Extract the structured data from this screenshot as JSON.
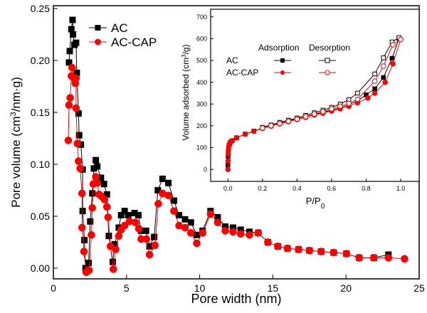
{
  "chart_data": [
    {
      "type": "line",
      "xlabel": "Pore width (nm)",
      "ylabel": "Pore volume (cm3/nm·g)",
      "ylabel_parts": [
        "Pore volume (cm",
        "3",
        "/nm·g)"
      ],
      "xlim": [
        0,
        25
      ],
      "ylim": [
        -0.0103,
        0.2527
      ],
      "xticks": [
        0,
        5,
        10,
        15,
        20,
        25
      ],
      "yticks": [
        "0.00",
        "0.05",
        "0.10",
        "0.15",
        "0.20",
        "0.25"
      ],
      "legend_position": "top-left",
      "series": [
        {
          "name": "AC",
          "color": "#000000",
          "marker": "square",
          "points": [
            [
              1.07,
              0.198
            ],
            [
              1.12,
              0.209
            ],
            [
              1.23,
              0.23
            ],
            [
              1.31,
              0.239
            ],
            [
              1.34,
              0.225
            ],
            [
              1.44,
              0.215
            ],
            [
              1.55,
              0.217
            ],
            [
              1.6,
              0.188
            ],
            [
              1.72,
              0.149
            ],
            [
              1.76,
              0.128
            ],
            [
              1.88,
              0.119
            ],
            [
              2.0,
              0.095
            ],
            [
              2.0,
              0.055
            ],
            [
              2.12,
              0.027
            ],
            [
              2.2,
              0.0
            ],
            [
              2.41,
              0.005
            ],
            [
              2.52,
              0.045
            ],
            [
              2.66,
              0.072
            ],
            [
              2.77,
              0.096
            ],
            [
              2.9,
              0.104
            ],
            [
              3.0,
              0.098
            ],
            [
              3.25,
              0.087
            ],
            [
              3.46,
              0.081
            ],
            [
              3.66,
              0.071
            ],
            [
              3.79,
              0.031
            ],
            [
              4.06,
              0.006
            ],
            [
              4.19,
              0.023
            ],
            [
              4.47,
              0.039
            ],
            [
              4.63,
              0.051
            ],
            [
              4.87,
              0.055
            ],
            [
              5.11,
              0.051
            ],
            [
              5.55,
              0.053
            ],
            [
              5.81,
              0.051
            ],
            [
              6.0,
              0.036
            ],
            [
              6.33,
              0.036
            ],
            [
              6.57,
              0.021
            ],
            [
              6.89,
              0.03
            ],
            [
              7.14,
              0.075
            ],
            [
              7.46,
              0.086
            ],
            [
              7.86,
              0.082
            ],
            [
              8.24,
              0.065
            ],
            [
              8.59,
              0.051
            ],
            [
              9.0,
              0.047
            ],
            [
              9.4,
              0.044
            ],
            [
              9.8,
              0.032
            ],
            [
              10.2,
              0.036
            ],
            [
              10.74,
              0.055
            ],
            [
              11.23,
              0.049
            ],
            [
              11.75,
              0.04
            ],
            [
              12.28,
              0.039
            ],
            [
              12.8,
              0.037
            ],
            [
              13.4,
              0.035
            ],
            [
              14.0,
              0.034
            ],
            [
              14.66,
              0.025
            ],
            [
              15.34,
              0.021
            ],
            [
              16.0,
              0.019
            ],
            [
              16.76,
              0.018
            ],
            [
              17.5,
              0.017
            ],
            [
              18.3,
              0.016
            ],
            [
              19.16,
              0.015
            ],
            [
              20.03,
              0.014
            ],
            [
              20.9,
              0.01
            ],
            [
              21.9,
              0.01
            ],
            [
              22.9,
              0.013
            ]
          ]
        },
        {
          "name": "AC-CAP",
          "color": "#ff0000",
          "marker": "circle",
          "points": [
            [
              1.02,
              0.123
            ],
            [
              1.07,
              0.157
            ],
            [
              1.15,
              0.164
            ],
            [
              1.23,
              0.185
            ],
            [
              1.28,
              0.193
            ],
            [
              1.39,
              0.183
            ],
            [
              1.5,
              0.178
            ],
            [
              1.55,
              0.183
            ],
            [
              1.55,
              0.154
            ],
            [
              1.64,
              0.12
            ],
            [
              1.72,
              0.103
            ],
            [
              1.83,
              0.096
            ],
            [
              1.96,
              0.072
            ],
            [
              1.96,
              0.039
            ],
            [
              2.09,
              0.016
            ],
            [
              2.25,
              -0.004
            ],
            [
              2.44,
              -0.002
            ],
            [
              2.6,
              0.032
            ],
            [
              2.66,
              0.058
            ],
            [
              2.73,
              0.081
            ],
            [
              2.9,
              0.088
            ],
            [
              3.0,
              0.082
            ],
            [
              3.12,
              0.071
            ],
            [
              3.3,
              0.069
            ],
            [
              3.5,
              0.066
            ],
            [
              3.66,
              0.059
            ],
            [
              3.74,
              0.049
            ],
            [
              3.9,
              0.021
            ],
            [
              4.1,
              -0.001
            ],
            [
              4.26,
              0.018
            ],
            [
              4.47,
              0.031
            ],
            [
              4.63,
              0.037
            ],
            [
              4.87,
              0.041
            ],
            [
              5.2,
              0.045
            ],
            [
              5.6,
              0.044
            ],
            [
              5.84,
              0.038
            ],
            [
              6.0,
              0.028
            ],
            [
              6.36,
              0.028
            ],
            [
              6.57,
              0.013
            ],
            [
              6.94,
              0.022
            ],
            [
              7.17,
              0.062
            ],
            [
              7.46,
              0.072
            ],
            [
              7.86,
              0.07
            ],
            [
              8.24,
              0.055
            ],
            [
              8.59,
              0.041
            ],
            [
              9.0,
              0.039
            ],
            [
              9.4,
              0.034
            ],
            [
              9.8,
              0.024
            ],
            [
              10.2,
              0.034
            ],
            [
              10.74,
              0.052
            ],
            [
              11.23,
              0.044
            ],
            [
              11.75,
              0.036
            ],
            [
              12.28,
              0.035
            ],
            [
              12.8,
              0.033
            ],
            [
              13.4,
              0.032
            ],
            [
              14.0,
              0.034
            ],
            [
              14.66,
              0.025
            ],
            [
              15.34,
              0.021
            ],
            [
              16.0,
              0.019
            ],
            [
              16.76,
              0.018
            ],
            [
              17.5,
              0.017
            ],
            [
              18.3,
              0.016
            ],
            [
              19.16,
              0.015
            ],
            [
              20.03,
              0.014
            ],
            [
              20.9,
              0.01
            ],
            [
              21.9,
              0.01
            ],
            [
              22.9,
              0.01
            ],
            [
              24.0,
              0.009
            ]
          ]
        }
      ]
    },
    {
      "type": "line",
      "xlabel": "P/P0",
      "xlabel_parts": [
        "P/P",
        "0"
      ],
      "ylabel": "Volume adsorbed (cm3/g)",
      "ylabel_parts": [
        "Volume adsorbed  (cm",
        "3",
        "/g)"
      ],
      "xlim": [
        -0.1,
        1.107
      ],
      "ylim": [
        -55,
        735
      ],
      "xticks": [
        "0.0",
        "0.2",
        "0.4",
        "0.6",
        "0.8",
        "1.0"
      ],
      "yticks": [
        "0",
        "100",
        "200",
        "300",
        "400",
        "500",
        "600",
        "700"
      ],
      "legend_headers": [
        "Adsorption",
        "Desorption"
      ],
      "legend_rows": [
        "AC",
        "AC-CAP"
      ],
      "series": [
        {
          "name": "AC Adsorption",
          "color": "#000000",
          "marker": "square",
          "filled": true,
          "points": [
            [
              0,
              20
            ],
            [
              0.001,
              60
            ],
            [
              0.002,
              85
            ],
            [
              0.004,
              100
            ],
            [
              0.006,
              110
            ],
            [
              0.01,
              118
            ],
            [
              0.015,
              125
            ],
            [
              0.025,
              132
            ],
            [
              0.05,
              145
            ],
            [
              0.1,
              162
            ],
            [
              0.15,
              176
            ],
            [
              0.2,
              190
            ],
            [
              0.25,
              201
            ],
            [
              0.3,
              212
            ],
            [
              0.35,
              222
            ],
            [
              0.4,
              232
            ],
            [
              0.45,
              242
            ],
            [
              0.5,
              252
            ],
            [
              0.55,
              262
            ],
            [
              0.6,
              272
            ],
            [
              0.65,
              283
            ],
            [
              0.7,
              297
            ],
            [
              0.75,
              315
            ],
            [
              0.8,
              342
            ],
            [
              0.85,
              370
            ],
            [
              0.9,
              422
            ],
            [
              0.95,
              510
            ],
            [
              0.99,
              600
            ]
          ]
        },
        {
          "name": "AC Desorption",
          "color": "#000000",
          "marker": "square",
          "filled": false,
          "points": [
            [
              0.99,
              605
            ],
            [
              0.95,
              585
            ],
            [
              0.9,
              512
            ],
            [
              0.85,
              438
            ],
            [
              0.75,
              350
            ],
            [
              0.7,
              320
            ],
            [
              0.65,
              300
            ],
            [
              0.6,
              285
            ],
            [
              0.55,
              272
            ],
            [
              0.5,
              260
            ],
            [
              0.45,
              248
            ],
            [
              0.4,
              236
            ],
            [
              0.35,
              226
            ],
            [
              0.3,
              216
            ],
            [
              0.25,
              204
            ],
            [
              0.2,
              193
            ]
          ]
        },
        {
          "name": "AC-CAP Adsorption",
          "color": "#ff0000",
          "marker": "circle",
          "filled": true,
          "points": [
            [
              0,
              0
            ],
            [
              0.001,
              40
            ],
            [
              0.002,
              70
            ],
            [
              0.003,
              90
            ],
            [
              0.005,
              105
            ],
            [
              0.008,
              115
            ],
            [
              0.012,
              122
            ],
            [
              0.02,
              130
            ],
            [
              0.05,
              145
            ],
            [
              0.1,
              162
            ],
            [
              0.15,
              175
            ],
            [
              0.2,
              188
            ],
            [
              0.25,
              199
            ],
            [
              0.3,
              209
            ],
            [
              0.35,
              219
            ],
            [
              0.4,
              229
            ],
            [
              0.45,
              239
            ],
            [
              0.5,
              250
            ],
            [
              0.55,
              258
            ],
            [
              0.6,
              268
            ],
            [
              0.65,
              278
            ],
            [
              0.7,
              290
            ],
            [
              0.75,
              306
            ],
            [
              0.81,
              328
            ],
            [
              0.85,
              350
            ],
            [
              0.91,
              400
            ],
            [
              0.955,
              485
            ],
            [
              1.0,
              597
            ]
          ]
        },
        {
          "name": "AC-CAP Desorption",
          "color": "#ff0000",
          "marker": "circle",
          "filled": false,
          "points": [
            [
              1.0,
              597
            ],
            [
              0.955,
              572
            ],
            [
              0.9,
              474
            ],
            [
              0.85,
              405
            ],
            [
              0.75,
              322
            ],
            [
              0.7,
              303
            ],
            [
              0.65,
              290
            ],
            [
              0.6,
              278
            ],
            [
              0.55,
              265
            ],
            [
              0.5,
              254
            ],
            [
              0.45,
              242
            ],
            [
              0.4,
              231
            ],
            [
              0.35,
              221
            ],
            [
              0.3,
              211
            ],
            [
              0.25,
              201
            ],
            [
              0.2,
              190
            ]
          ]
        }
      ]
    }
  ]
}
